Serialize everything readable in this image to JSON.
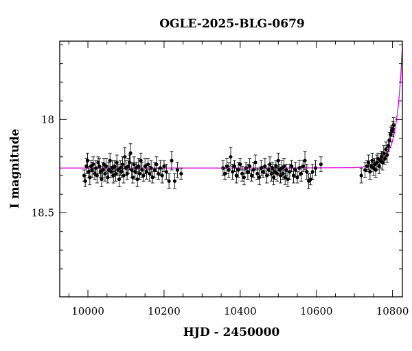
{
  "chart_data": {
    "type": "scatter",
    "title": "OGLE-2025-BLG-0679",
    "xlabel": "HJD - 2450000",
    "ylabel": "I magnitude",
    "xlim": [
      9926,
      10826
    ],
    "ylim": [
      18.95,
      17.58
    ],
    "y_inverted": true,
    "x_ticks": [
      10000,
      10200,
      10400,
      10600,
      10800
    ],
    "x_tick_labels": [
      "10000",
      "10200",
      "10400",
      "10600",
      "10800"
    ],
    "y_ticks": [
      18.0,
      18.5
    ],
    "y_tick_labels": [
      "18",
      "18.5"
    ],
    "grid": false,
    "model_color": "#e000e0",
    "point_color": "#000000",
    "series": [
      {
        "kind": "observations",
        "points": [
          [
            9990,
            18.3,
            0.03
          ],
          [
            9993,
            18.33,
            0.03
          ],
          [
            9996,
            18.25,
            0.04
          ],
          [
            9999,
            18.22,
            0.04
          ],
          [
            10002,
            18.28,
            0.03
          ],
          [
            10005,
            18.31,
            0.04
          ],
          [
            10008,
            18.25,
            0.03
          ],
          [
            10011,
            18.27,
            0.04
          ],
          [
            10014,
            18.24,
            0.04
          ],
          [
            10018,
            18.29,
            0.03
          ],
          [
            10021,
            18.26,
            0.04
          ],
          [
            10024,
            18.3,
            0.04
          ],
          [
            10027,
            18.23,
            0.03
          ],
          [
            10030,
            18.25,
            0.04
          ],
          [
            10033,
            18.28,
            0.03
          ],
          [
            10036,
            18.32,
            0.04
          ],
          [
            10039,
            18.27,
            0.04
          ],
          [
            10042,
            18.24,
            0.03
          ],
          [
            10045,
            18.29,
            0.04
          ],
          [
            10048,
            18.25,
            0.04
          ],
          [
            10052,
            18.31,
            0.03
          ],
          [
            10055,
            18.27,
            0.04
          ],
          [
            10058,
            18.22,
            0.04
          ],
          [
            10061,
            18.28,
            0.03
          ],
          [
            10064,
            18.26,
            0.04
          ],
          [
            10067,
            18.3,
            0.04
          ],
          [
            10070,
            18.25,
            0.03
          ],
          [
            10073,
            18.29,
            0.04
          ],
          [
            10076,
            18.23,
            0.04
          ],
          [
            10079,
            18.27,
            0.03
          ],
          [
            10082,
            18.32,
            0.04
          ],
          [
            10085,
            18.26,
            0.04
          ],
          [
            10088,
            18.28,
            0.03
          ],
          [
            10091,
            18.24,
            0.04
          ],
          [
            10094,
            18.3,
            0.04
          ],
          [
            10097,
            18.2,
            0.05
          ],
          [
            10100,
            18.26,
            0.04
          ],
          [
            10103,
            18.29,
            0.03
          ],
          [
            10106,
            18.25,
            0.04
          ],
          [
            10109,
            18.23,
            0.04
          ],
          [
            10112,
            18.18,
            0.05
          ],
          [
            10115,
            18.27,
            0.04
          ],
          [
            10118,
            18.31,
            0.03
          ],
          [
            10121,
            18.24,
            0.04
          ],
          [
            10124,
            18.28,
            0.04
          ],
          [
            10127,
            18.26,
            0.03
          ],
          [
            10130,
            18.32,
            0.04
          ],
          [
            10133,
            18.25,
            0.04
          ],
          [
            10136,
            18.29,
            0.03
          ],
          [
            10139,
            18.22,
            0.04
          ],
          [
            10142,
            18.27,
            0.04
          ],
          [
            10146,
            18.3,
            0.03
          ],
          [
            10150,
            18.25,
            0.04
          ],
          [
            10154,
            18.28,
            0.04
          ],
          [
            10158,
            18.24,
            0.03
          ],
          [
            10162,
            18.29,
            0.04
          ],
          [
            10166,
            18.26,
            0.04
          ],
          [
            10170,
            18.31,
            0.03
          ],
          [
            10175,
            18.27,
            0.04
          ],
          [
            10180,
            18.24,
            0.04
          ],
          [
            10185,
            18.29,
            0.03
          ],
          [
            10190,
            18.26,
            0.04
          ],
          [
            10195,
            18.3,
            0.04
          ],
          [
            10200,
            18.25,
            0.03
          ],
          [
            10206,
            18.28,
            0.04
          ],
          [
            10213,
            18.33,
            0.04
          ],
          [
            10220,
            18.22,
            0.05
          ],
          [
            10228,
            18.33,
            0.04
          ],
          [
            10235,
            18.27,
            0.04
          ],
          [
            10245,
            18.29,
            0.03
          ],
          [
            10355,
            18.26,
            0.04
          ],
          [
            10360,
            18.29,
            0.03
          ],
          [
            10365,
            18.25,
            0.04
          ],
          [
            10370,
            18.27,
            0.04
          ],
          [
            10375,
            18.2,
            0.05
          ],
          [
            10380,
            18.28,
            0.04
          ],
          [
            10385,
            18.25,
            0.03
          ],
          [
            10390,
            18.3,
            0.04
          ],
          [
            10395,
            18.27,
            0.04
          ],
          [
            10400,
            18.24,
            0.03
          ],
          [
            10405,
            18.29,
            0.04
          ],
          [
            10410,
            18.31,
            0.04
          ],
          [
            10415,
            18.26,
            0.03
          ],
          [
            10420,
            18.28,
            0.04
          ],
          [
            10425,
            18.25,
            0.04
          ],
          [
            10430,
            18.3,
            0.03
          ],
          [
            10435,
            18.27,
            0.04
          ],
          [
            10440,
            18.23,
            0.04
          ],
          [
            10445,
            18.29,
            0.03
          ],
          [
            10450,
            18.31,
            0.04
          ],
          [
            10455,
            18.26,
            0.04
          ],
          [
            10460,
            18.28,
            0.03
          ],
          [
            10465,
            18.25,
            0.04
          ],
          [
            10470,
            18.3,
            0.04
          ],
          [
            10475,
            18.27,
            0.03
          ],
          [
            10478,
            18.24,
            0.04
          ],
          [
            10482,
            18.29,
            0.04
          ],
          [
            10485,
            18.26,
            0.03
          ],
          [
            10488,
            18.31,
            0.04
          ],
          [
            10491,
            18.28,
            0.04
          ],
          [
            10494,
            18.25,
            0.03
          ],
          [
            10497,
            18.29,
            0.04
          ],
          [
            10500,
            18.22,
            0.04
          ],
          [
            10503,
            18.27,
            0.03
          ],
          [
            10506,
            18.3,
            0.04
          ],
          [
            10509,
            18.26,
            0.04
          ],
          [
            10512,
            18.29,
            0.03
          ],
          [
            10515,
            18.25,
            0.04
          ],
          [
            10518,
            18.31,
            0.04
          ],
          [
            10521,
            18.27,
            0.03
          ],
          [
            10525,
            18.32,
            0.04
          ],
          [
            10530,
            18.28,
            0.04
          ],
          [
            10535,
            18.25,
            0.03
          ],
          [
            10540,
            18.3,
            0.04
          ],
          [
            10545,
            18.27,
            0.04
          ],
          [
            10550,
            18.31,
            0.03
          ],
          [
            10555,
            18.26,
            0.04
          ],
          [
            10560,
            18.29,
            0.04
          ],
          [
            10565,
            18.25,
            0.03
          ],
          [
            10570,
            18.22,
            0.05
          ],
          [
            10575,
            18.28,
            0.04
          ],
          [
            10580,
            18.33,
            0.04
          ],
          [
            10585,
            18.32,
            0.03
          ],
          [
            10590,
            18.28,
            0.04
          ],
          [
            10598,
            18.26,
            0.04
          ],
          [
            10612,
            18.24,
            0.04
          ],
          [
            10718,
            18.3,
            0.04
          ],
          [
            10728,
            18.27,
            0.04
          ],
          [
            10733,
            18.25,
            0.03
          ],
          [
            10737,
            18.23,
            0.04
          ],
          [
            10741,
            18.28,
            0.04
          ],
          [
            10744,
            18.25,
            0.03
          ],
          [
            10747,
            18.22,
            0.04
          ],
          [
            10750,
            18.26,
            0.04
          ],
          [
            10753,
            18.24,
            0.03
          ],
          [
            10756,
            18.27,
            0.04
          ],
          [
            10759,
            18.23,
            0.04
          ],
          [
            10762,
            18.21,
            0.03
          ],
          [
            10765,
            18.25,
            0.04
          ],
          [
            10768,
            18.22,
            0.04
          ],
          [
            10771,
            18.2,
            0.03
          ],
          [
            10774,
            18.23,
            0.04
          ],
          [
            10777,
            18.18,
            0.04
          ],
          [
            10780,
            18.21,
            0.03
          ],
          [
            10783,
            18.16,
            0.04
          ],
          [
            10786,
            18.19,
            0.04
          ],
          [
            10789,
            18.14,
            0.03
          ],
          [
            10792,
            18.11,
            0.04
          ],
          [
            10795,
            18.08,
            0.04
          ],
          [
            10798,
            18.06,
            0.03
          ],
          [
            10801,
            18.05,
            0.04
          ],
          [
            10803,
            18.03,
            0.04
          ]
        ]
      },
      {
        "kind": "model",
        "x": [
          9926,
          10500,
          10700,
          10720,
          10740,
          10755,
          10770,
          10780,
          10790,
          10798,
          10804,
          10810,
          10815,
          10819,
          10822,
          10824,
          10826
        ],
        "y": [
          18.26,
          18.26,
          18.258,
          18.255,
          18.248,
          18.238,
          18.22,
          18.2,
          18.17,
          18.13,
          18.08,
          18.01,
          17.93,
          17.84,
          17.76,
          17.68,
          17.6
        ]
      }
    ]
  }
}
